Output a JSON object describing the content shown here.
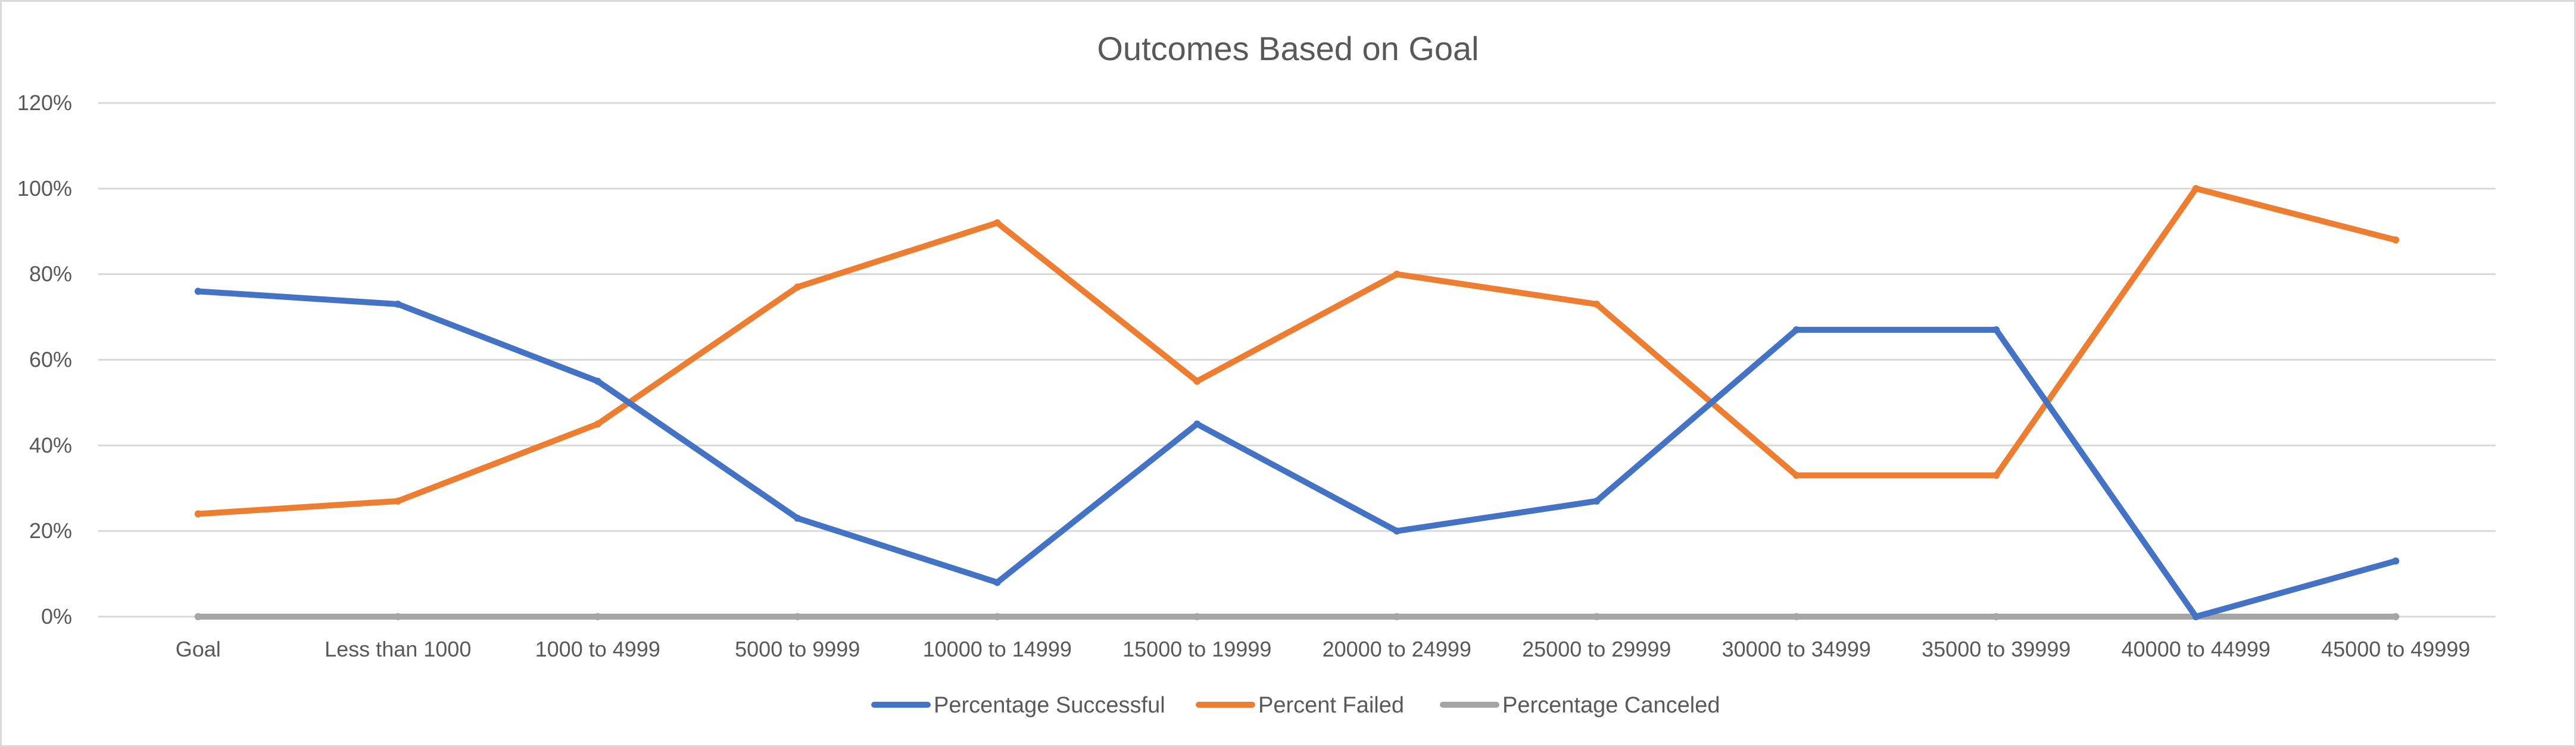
{
  "chart_data": {
    "type": "line",
    "title": "Outcomes Based on Goal",
    "xlabel": "",
    "ylabel": "",
    "categories": [
      "Goal",
      "Less than 1000",
      "1000 to 4999",
      "5000 to 9999",
      "10000 to 14999",
      "15000 to 19999",
      "20000 to 24999",
      "25000 to 29999",
      "30000 to 34999",
      "35000 to 39999",
      "40000 to 44999",
      "45000 to 49999"
    ],
    "series": [
      {
        "name": "Percentage Successful",
        "color": "#4472c4",
        "values": [
          76,
          73,
          55,
          23,
          8,
          45,
          20,
          27,
          67,
          67,
          0,
          13
        ]
      },
      {
        "name": "Percent Failed",
        "color": "#ed7d31",
        "values": [
          24,
          27,
          45,
          77,
          92,
          55,
          80,
          73,
          33,
          33,
          100,
          88
        ]
      },
      {
        "name": "Percentage Canceled",
        "color": "#a5a5a5",
        "values": [
          0,
          0,
          0,
          0,
          0,
          0,
          0,
          0,
          0,
          0,
          0,
          0
        ]
      }
    ],
    "ylim": [
      0,
      120
    ],
    "yticks": [
      0,
      20,
      40,
      60,
      80,
      100,
      120
    ],
    "ytick_labels": [
      "0%",
      "20%",
      "40%",
      "60%",
      "80%",
      "100%",
      "120%"
    ],
    "grid": true,
    "legend_position": "bottom"
  }
}
